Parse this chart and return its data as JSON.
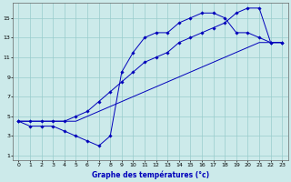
{
  "xlabel": "Graphe des températures (°c)",
  "bg_color": "#cceaea",
  "line_color": "#0000bb",
  "grid_color": "#99cccc",
  "xlim": [
    -0.5,
    23.5
  ],
  "ylim": [
    0.5,
    16.5
  ],
  "xticks": [
    0,
    1,
    2,
    3,
    4,
    5,
    6,
    7,
    8,
    9,
    10,
    11,
    12,
    13,
    14,
    15,
    16,
    17,
    18,
    19,
    20,
    21,
    22,
    23
  ],
  "yticks": [
    1,
    3,
    5,
    7,
    9,
    11,
    13,
    15
  ],
  "line1_x": [
    0,
    1,
    2,
    3,
    4,
    5,
    6,
    7,
    8,
    9,
    10,
    11,
    12,
    13,
    14,
    15,
    16,
    17,
    18,
    19,
    20,
    21,
    22,
    23
  ],
  "line1_y": [
    4.5,
    4.0,
    4.0,
    4.0,
    3.5,
    3.0,
    2.5,
    2.0,
    3.0,
    9.5,
    11.5,
    13.0,
    13.5,
    13.5,
    14.5,
    15.0,
    15.5,
    15.5,
    15.0,
    13.5,
    13.5,
    13.0,
    12.5,
    12.5
  ],
  "line2_x": [
    0,
    1,
    2,
    3,
    4,
    5,
    6,
    7,
    8,
    9,
    10,
    11,
    12,
    13,
    14,
    15,
    16,
    17,
    18,
    19,
    20,
    21,
    22,
    23
  ],
  "line2_y": [
    4.5,
    4.5,
    4.5,
    4.5,
    4.5,
    5.0,
    5.5,
    6.5,
    7.5,
    8.5,
    9.5,
    10.5,
    11.0,
    11.5,
    12.5,
    13.0,
    13.5,
    14.0,
    14.5,
    15.5,
    16.0,
    16.0,
    12.5,
    12.5
  ],
  "line3_x": [
    0,
    1,
    2,
    3,
    4,
    5,
    6,
    7,
    8,
    9,
    10,
    11,
    12,
    13,
    14,
    15,
    16,
    17,
    18,
    19,
    20,
    21,
    22,
    23
  ],
  "line3_y": [
    4.5,
    4.5,
    4.5,
    4.5,
    4.5,
    4.5,
    5.0,
    5.5,
    6.0,
    6.5,
    7.0,
    7.5,
    8.0,
    8.5,
    9.0,
    9.5,
    10.0,
    10.5,
    11.0,
    11.5,
    12.0,
    12.5,
    12.5,
    12.5
  ]
}
